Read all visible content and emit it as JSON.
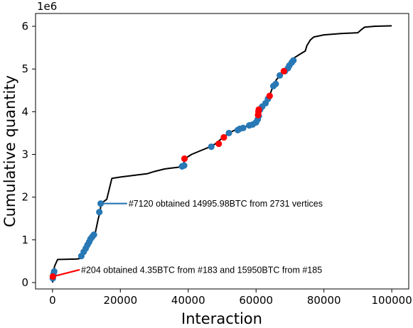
{
  "chart_data": {
    "type": "line",
    "xlabel": "Interaction",
    "ylabel": "Cumulative quantity",
    "y_offset_label": "1e6",
    "xlim": [
      -5000,
      105000
    ],
    "ylim": [
      -0.15,
      6.3
    ],
    "x_ticks": [
      0,
      20000,
      40000,
      60000,
      80000,
      100000
    ],
    "x_tick_labels": [
      "0",
      "20000",
      "40000",
      "60000",
      "80000",
      "100000"
    ],
    "y_ticks": [
      0,
      1,
      2,
      3,
      4,
      5,
      6
    ],
    "y_tick_labels": [
      "0",
      "1",
      "2",
      "3",
      "4",
      "5",
      "6"
    ],
    "grid": false,
    "line_color": "#000000",
    "line": {
      "x": [
        0,
        200,
        400,
        600,
        1500,
        7000,
        8000,
        8500,
        9000,
        10000,
        11000,
        11800,
        12500,
        13500,
        14000,
        14300,
        16000,
        17500,
        20000,
        25000,
        28000,
        30000,
        33000,
        35000,
        37000,
        38000,
        38500,
        39000,
        41000,
        44000,
        46500,
        48000,
        50000,
        52000,
        54000,
        56000,
        58000,
        59000,
        60000,
        60700,
        61000,
        61500,
        62000,
        63000,
        64000,
        65000,
        65300,
        66000,
        67000,
        68000,
        69000,
        70000,
        71000,
        73000,
        74500,
        75000,
        76000,
        77000,
        80000,
        85000,
        90000,
        91000,
        92000,
        95000,
        100000
      ],
      "y": [
        0.0,
        0.15,
        0.28,
        0.38,
        0.54,
        0.55,
        0.56,
        0.6,
        0.7,
        0.85,
        0.98,
        1.07,
        1.12,
        1.5,
        1.65,
        1.85,
        1.95,
        2.44,
        2.47,
        2.52,
        2.55,
        2.6,
        2.66,
        2.68,
        2.7,
        2.72,
        2.74,
        2.9,
        3.0,
        3.1,
        3.18,
        3.25,
        3.38,
        3.5,
        3.58,
        3.62,
        3.68,
        3.72,
        3.8,
        3.95,
        4.0,
        4.08,
        4.15,
        4.25,
        4.38,
        4.6,
        4.65,
        4.75,
        4.85,
        4.95,
        5.05,
        5.15,
        5.25,
        5.35,
        5.42,
        5.55,
        5.68,
        5.75,
        5.8,
        5.83,
        5.85,
        5.92,
        5.98,
        6.0,
        6.01
      ]
    },
    "blue_points": {
      "color": "#2878b5",
      "x": [
        100,
        300,
        500,
        8500,
        9200,
        9800,
        10300,
        10800,
        11200,
        11700,
        12200,
        13800,
        14200,
        38200,
        38800,
        46800,
        52000,
        54600,
        55200,
        56200,
        58000,
        59000,
        60000,
        60500,
        60800,
        61200,
        61800,
        62800,
        63500,
        65100,
        65800,
        67000,
        68500,
        69400,
        69800,
        70500,
        71000
      ],
      "y": [
        0.1,
        0.2,
        0.26,
        0.62,
        0.72,
        0.8,
        0.88,
        0.95,
        1.02,
        1.07,
        1.12,
        1.65,
        1.85,
        2.72,
        2.74,
        3.18,
        3.5,
        3.57,
        3.6,
        3.62,
        3.68,
        3.7,
        3.75,
        3.82,
        3.9,
        4.05,
        4.12,
        4.2,
        4.3,
        4.6,
        4.65,
        4.85,
        4.95,
        5.02,
        5.08,
        5.15,
        5.2
      ]
    },
    "red_points": {
      "color": "#ff0000",
      "x": [
        100,
        38900,
        49000,
        50500,
        60600,
        60700,
        60800,
        64000,
        68200
      ],
      "y": [
        0.14,
        2.9,
        3.25,
        3.4,
        3.92,
        4.0,
        4.05,
        4.37,
        4.95
      ]
    },
    "annotations": [
      {
        "text": "#7120 obtained 14995.98BTC from 2731 vertices",
        "color": "#2878b5",
        "point": [
          14000,
          1.85
        ],
        "text_anchor": [
          22000,
          1.85
        ]
      },
      {
        "text": "#204 obtained 4.35BTC from #183 and 15950BTC from #185",
        "color": "#ff0000",
        "point": [
          100,
          0.14
        ],
        "text_anchor": [
          8000,
          0.3
        ]
      }
    ]
  }
}
